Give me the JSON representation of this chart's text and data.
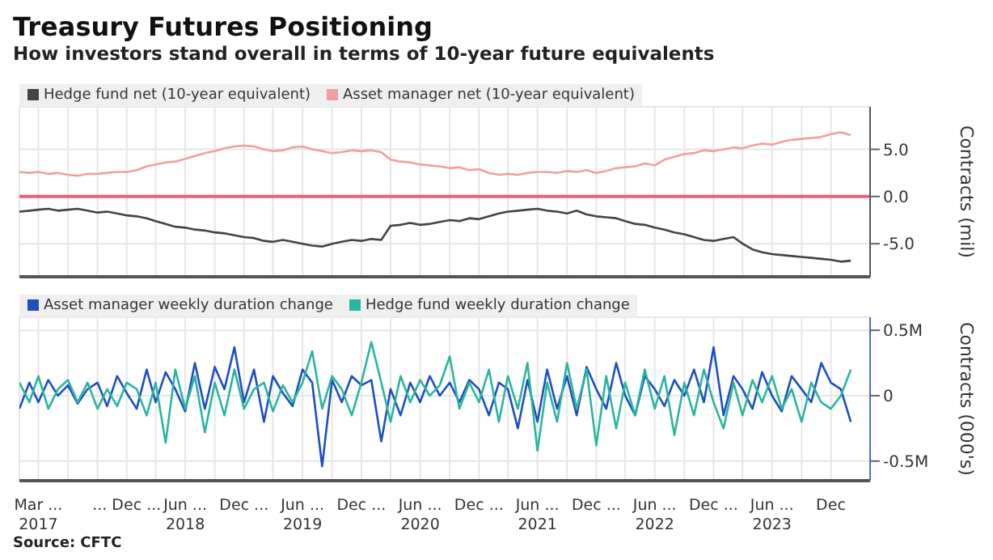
{
  "chart_data": [
    {
      "type": "line",
      "title": "Treasury Futures Positioning",
      "subtitle": "How investors stand overall in terms of 10-year future equivalents",
      "ylabel": "Contracts (mil)",
      "x": [
        "2017-01",
        "2017-02",
        "2017-03",
        "2017-04",
        "2017-05",
        "2017-06",
        "2017-07",
        "2017-08",
        "2017-09",
        "2017-10",
        "2017-11",
        "2017-12",
        "2018-01",
        "2018-02",
        "2018-03",
        "2018-04",
        "2018-05",
        "2018-06",
        "2018-07",
        "2018-08",
        "2018-09",
        "2018-10",
        "2018-11",
        "2018-12",
        "2019-01",
        "2019-02",
        "2019-03",
        "2019-04",
        "2019-05",
        "2019-06",
        "2019-07",
        "2019-08",
        "2019-09",
        "2019-10",
        "2019-11",
        "2019-12",
        "2020-01",
        "2020-02",
        "2020-03",
        "2020-04",
        "2020-05",
        "2020-06",
        "2020-07",
        "2020-08",
        "2020-09",
        "2020-10",
        "2020-11",
        "2020-12",
        "2021-01",
        "2021-02",
        "2021-03",
        "2021-04",
        "2021-05",
        "2021-06",
        "2021-07",
        "2021-08",
        "2021-09",
        "2021-10",
        "2021-11",
        "2021-12",
        "2022-01",
        "2022-02",
        "2022-03",
        "2022-04",
        "2022-05",
        "2022-06",
        "2022-07",
        "2022-08",
        "2022-09",
        "2022-10",
        "2022-11",
        "2022-12",
        "2023-01",
        "2023-02",
        "2023-03",
        "2023-04",
        "2023-05",
        "2023-06",
        "2023-07",
        "2023-08",
        "2023-09",
        "2023-10",
        "2023-11",
        "2023-12",
        "2024-01",
        "2024-02"
      ],
      "series": [
        {
          "name": "Hedge fund net (10-year equivalent)",
          "color": "#444444",
          "values": [
            -1.6,
            -1.5,
            -1.4,
            -1.3,
            -1.5,
            -1.4,
            -1.3,
            -1.5,
            -1.7,
            -1.6,
            -1.8,
            -2.0,
            -2.1,
            -2.3,
            -2.6,
            -2.9,
            -3.2,
            -3.3,
            -3.5,
            -3.6,
            -3.8,
            -3.9,
            -4.1,
            -4.3,
            -4.4,
            -4.7,
            -4.8,
            -4.6,
            -4.8,
            -5.0,
            -5.2,
            -5.3,
            -5.0,
            -4.8,
            -4.6,
            -4.7,
            -4.5,
            -4.6,
            -3.1,
            -3.0,
            -2.8,
            -3.0,
            -2.9,
            -2.7,
            -2.5,
            -2.6,
            -2.3,
            -2.4,
            -2.1,
            -1.8,
            -1.6,
            -1.5,
            -1.4,
            -1.3,
            -1.5,
            -1.6,
            -1.8,
            -1.5,
            -1.9,
            -2.1,
            -2.2,
            -2.3,
            -2.6,
            -2.9,
            -3.0,
            -3.3,
            -3.5,
            -3.8,
            -4.0,
            -4.3,
            -4.6,
            -4.7,
            -4.5,
            -4.3,
            -5.0,
            -5.6,
            -5.9,
            -6.1,
            -6.2,
            -6.3,
            -6.4,
            -6.5,
            -6.6,
            -6.7,
            -6.9,
            -6.8
          ]
        },
        {
          "name": "Asset manager net (10-year equivalent)",
          "color": "#f0a0a0",
          "values": [
            2.6,
            2.5,
            2.6,
            2.4,
            2.5,
            2.3,
            2.2,
            2.4,
            2.4,
            2.5,
            2.6,
            2.6,
            2.8,
            3.2,
            3.4,
            3.6,
            3.7,
            4.0,
            4.3,
            4.6,
            4.8,
            5.1,
            5.3,
            5.4,
            5.3,
            5.0,
            4.8,
            4.9,
            5.2,
            5.3,
            5.0,
            4.8,
            4.6,
            4.7,
            4.9,
            4.8,
            4.9,
            4.7,
            3.9,
            3.7,
            3.6,
            3.4,
            3.3,
            3.2,
            3.0,
            3.1,
            2.8,
            2.9,
            2.5,
            2.3,
            2.4,
            2.3,
            2.5,
            2.6,
            2.6,
            2.5,
            2.7,
            2.6,
            2.8,
            2.5,
            2.7,
            3.0,
            3.1,
            3.2,
            3.5,
            3.3,
            3.9,
            4.2,
            4.5,
            4.6,
            4.9,
            4.8,
            5.0,
            5.2,
            5.1,
            5.4,
            5.6,
            5.5,
            5.8,
            6.0,
            6.1,
            6.2,
            6.3,
            6.6,
            6.8,
            6.5
          ]
        }
      ],
      "xlim": [
        "2017-01",
        "2024-04"
      ],
      "xticks": [
        {
          "value": "2017-03",
          "label": null
        },
        {
          "value": "2017-06",
          "label": null
        },
        {
          "value": "2017-09",
          "label": null
        },
        {
          "value": "2017-12",
          "label": null
        },
        {
          "value": "2018-03",
          "label": null
        },
        {
          "value": "2018-06",
          "label": null
        },
        {
          "value": "2018-09",
          "label": null
        },
        {
          "value": "2018-12",
          "label": null
        },
        {
          "value": "2019-03",
          "label": null
        },
        {
          "value": "2019-06",
          "label": null
        },
        {
          "value": "2019-09",
          "label": null
        },
        {
          "value": "2019-12",
          "label": null
        },
        {
          "value": "2020-03",
          "label": null
        },
        {
          "value": "2020-06",
          "label": null
        },
        {
          "value": "2020-09",
          "label": null
        },
        {
          "value": "2020-12",
          "label": null
        },
        {
          "value": "2021-03",
          "label": null
        },
        {
          "value": "2021-06",
          "label": null
        },
        {
          "value": "2021-09",
          "label": null
        },
        {
          "value": "2021-12",
          "label": null
        },
        {
          "value": "2022-03",
          "label": null
        },
        {
          "value": "2022-06",
          "label": null
        },
        {
          "value": "2022-09",
          "label": null
        },
        {
          "value": "2022-12",
          "label": null
        },
        {
          "value": "2023-03",
          "label": null
        },
        {
          "value": "2023-06",
          "label": null
        },
        {
          "value": "2023-09",
          "label": null
        },
        {
          "value": "2023-12",
          "label": null
        }
      ],
      "ylim": [
        -8.5,
        9.5
      ],
      "yticks": [
        {
          "value": -5,
          "label": "-5.0"
        },
        {
          "value": 0,
          "label": "0.0"
        },
        {
          "value": 5,
          "label": "5.0"
        }
      ],
      "ref_lines": [
        {
          "axis": "y",
          "value": 0,
          "color": "#e8607a"
        }
      ],
      "grid": true,
      "legend": "top left",
      "tick_labels": "y"
    },
    {
      "type": "line",
      "ylabel": "Contracts (000's)",
      "annotations": [
        "Source: CFTC"
      ],
      "x": [
        "2017-01",
        "2017-02",
        "2017-03",
        "2017-04",
        "2017-05",
        "2017-06",
        "2017-07",
        "2017-08",
        "2017-09",
        "2017-10",
        "2017-11",
        "2017-12",
        "2018-01",
        "2018-02",
        "2018-03",
        "2018-04",
        "2018-05",
        "2018-06",
        "2018-07",
        "2018-08",
        "2018-09",
        "2018-10",
        "2018-11",
        "2018-12",
        "2019-01",
        "2019-02",
        "2019-03",
        "2019-04",
        "2019-05",
        "2019-06",
        "2019-07",
        "2019-08",
        "2019-09",
        "2019-10",
        "2019-11",
        "2019-12",
        "2020-01",
        "2020-02",
        "2020-03",
        "2020-04",
        "2020-05",
        "2020-06",
        "2020-07",
        "2020-08",
        "2020-09",
        "2020-10",
        "2020-11",
        "2020-12",
        "2021-01",
        "2021-02",
        "2021-03",
        "2021-04",
        "2021-05",
        "2021-06",
        "2021-07",
        "2021-08",
        "2021-09",
        "2021-10",
        "2021-11",
        "2021-12",
        "2022-01",
        "2022-02",
        "2022-03",
        "2022-04",
        "2022-05",
        "2022-06",
        "2022-07",
        "2022-08",
        "2022-09",
        "2022-10",
        "2022-11",
        "2022-12",
        "2023-01",
        "2023-02",
        "2023-03",
        "2023-04",
        "2023-05",
        "2023-06",
        "2023-07",
        "2023-08",
        "2023-09",
        "2023-10",
        "2023-11",
        "2023-12",
        "2024-01",
        "2024-02"
      ],
      "series": [
        {
          "name": "Asset manager weekly duration change",
          "color": "#1f4fbf",
          "values": [
            -0.1,
            0.1,
            -0.05,
            0.12,
            0.0,
            0.08,
            -0.06,
            0.05,
            0.1,
            -0.08,
            0.15,
            0.02,
            -0.1,
            0.2,
            -0.05,
            0.18,
            0.05,
            -0.12,
            0.25,
            -0.1,
            0.22,
            0.05,
            0.37,
            -0.05,
            0.2,
            -0.2,
            0.15,
            0.02,
            -0.08,
            0.2,
            0.1,
            -0.54,
            0.12,
            -0.05,
            0.15,
            0.08,
            0.12,
            -0.35,
            0.05,
            -0.15,
            0.1,
            -0.05,
            0.15,
            0.0,
            0.1,
            -0.05,
            0.12,
            0.05,
            -0.15,
            0.1,
            0.05,
            -0.25,
            0.12,
            -0.2,
            0.2,
            -0.1,
            0.15,
            -0.15,
            0.22,
            0.05,
            -0.1,
            0.25,
            0.0,
            -0.15,
            0.15,
            0.05,
            -0.08,
            0.12,
            0.0,
            0.2,
            -0.05,
            0.37,
            -0.15,
            0.15,
            0.05,
            -0.1,
            0.18,
            0.0,
            -0.12,
            0.15,
            0.05,
            -0.05,
            0.25,
            0.1,
            0.05,
            -0.2
          ]
        },
        {
          "name": "Hedge fund weekly duration change",
          "color": "#2bb5a0",
          "values": [
            0.1,
            -0.05,
            0.15,
            -0.1,
            0.05,
            0.12,
            -0.05,
            0.1,
            -0.1,
            0.05,
            -0.08,
            0.1,
            0.05,
            -0.15,
            0.1,
            -0.36,
            0.2,
            -0.1,
            0.15,
            -0.28,
            0.1,
            -0.15,
            0.2,
            -0.1,
            0.05,
            0.1,
            -0.12,
            0.08,
            -0.05,
            0.1,
            0.34,
            -0.1,
            0.15,
            0.05,
            -0.15,
            0.1,
            0.41,
            0.1,
            -0.2,
            0.15,
            -0.05,
            0.12,
            0.0,
            0.08,
            0.3,
            -0.1,
            0.1,
            -0.05,
            0.2,
            -0.2,
            0.15,
            -0.1,
            0.25,
            -0.42,
            0.1,
            -0.2,
            0.25,
            -0.1,
            0.2,
            -0.38,
            0.15,
            -0.25,
            0.1,
            -0.15,
            0.2,
            -0.1,
            0.15,
            -0.3,
            0.1,
            -0.15,
            0.2,
            -0.05,
            -0.25,
            0.1,
            -0.15,
            0.12,
            -0.05,
            0.15,
            -0.1,
            0.05,
            -0.2,
            0.1,
            -0.05,
            -0.1,
            0.0,
            0.2
          ]
        }
      ],
      "xlim": [
        "2017-01",
        "2024-04"
      ],
      "xticks": [
        {
          "value": "2017-03",
          "label": "Mar ...\n2017"
        },
        {
          "value": "2017-06",
          "label": null
        },
        {
          "value": "2017-09",
          "label": null
        },
        {
          "value": "2017-12",
          "label": "... Dec ..."
        },
        {
          "value": "2018-03",
          "label": null
        },
        {
          "value": "2018-06",
          "label": "Jun ...\n2018"
        },
        {
          "value": "2018-09",
          "label": null
        },
        {
          "value": "2018-12",
          "label": "Dec ..."
        },
        {
          "value": "2019-03",
          "label": null
        },
        {
          "value": "2019-06",
          "label": "Jun ...\n2019"
        },
        {
          "value": "2019-09",
          "label": null
        },
        {
          "value": "2019-12",
          "label": "Dec ..."
        },
        {
          "value": "2020-03",
          "label": null
        },
        {
          "value": "2020-06",
          "label": "Jun ...\n2020"
        },
        {
          "value": "2020-09",
          "label": null
        },
        {
          "value": "2020-12",
          "label": "Dec ..."
        },
        {
          "value": "2021-03",
          "label": null
        },
        {
          "value": "2021-06",
          "label": "Jun ...\n2021"
        },
        {
          "value": "2021-09",
          "label": null
        },
        {
          "value": "2021-12",
          "label": "Dec ..."
        },
        {
          "value": "2022-03",
          "label": null
        },
        {
          "value": "2022-06",
          "label": "Jun ...\n2022"
        },
        {
          "value": "2022-09",
          "label": null
        },
        {
          "value": "2022-12",
          "label": "Dec ..."
        },
        {
          "value": "2023-03",
          "label": null
        },
        {
          "value": "2023-06",
          "label": "Jun ...\n2023"
        },
        {
          "value": "2023-09",
          "label": null
        },
        {
          "value": "2023-12",
          "label": "Dec"
        }
      ],
      "ylim": [
        -0.65,
        0.6
      ],
      "yticks": [
        {
          "value": -0.5,
          "label": "-0.5M"
        },
        {
          "value": 0,
          "label": "0"
        },
        {
          "value": 0.5,
          "label": "0.5M"
        }
      ],
      "grid": true,
      "legend": "top left"
    }
  ]
}
